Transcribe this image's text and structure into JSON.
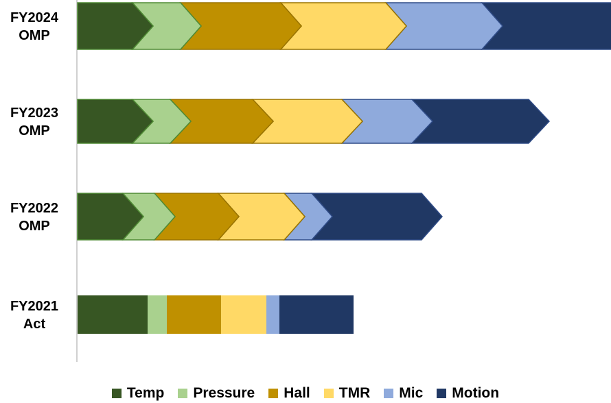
{
  "chart_data": {
    "type": "bar",
    "orientation": "horizontal",
    "stacked": true,
    "title": "",
    "xlabel": "",
    "ylabel": "",
    "grid": false,
    "legend_position": "bottom",
    "categories": [
      "FY2024 OMP",
      "FY2023 OMP",
      "FY2022 OMP",
      "FY2021 Act"
    ],
    "category_lines": [
      [
        "FY2024",
        "OMP"
      ],
      [
        "FY2023",
        "OMP"
      ],
      [
        "FY2022",
        "OMP"
      ],
      [
        "FY2021",
        "Act"
      ]
    ],
    "category_shape": [
      "chevron",
      "chevron",
      "chevron",
      "rectangle"
    ],
    "xlim": [
      0,
      780
    ],
    "series": [
      {
        "name": "Temp",
        "color": "#375623",
        "values": [
          80,
          80,
          66,
          102
        ]
      },
      {
        "name": "Pressure",
        "color": "#A9D18E",
        "values": [
          70,
          55,
          46,
          28
        ]
      },
      {
        "name": "Hall",
        "color": "#BF9000",
        "values": [
          146,
          120,
          93,
          79
        ]
      },
      {
        "name": "TMR",
        "color": "#FFD966",
        "values": [
          153,
          130,
          96,
          66
        ]
      },
      {
        "name": "Mic",
        "color": "#8FAADC",
        "values": [
          140,
          102,
          40,
          19
        ]
      },
      {
        "name": "Motion",
        "color": "#203864",
        "values": [
          190,
          170,
          160,
          108
        ]
      }
    ]
  }
}
